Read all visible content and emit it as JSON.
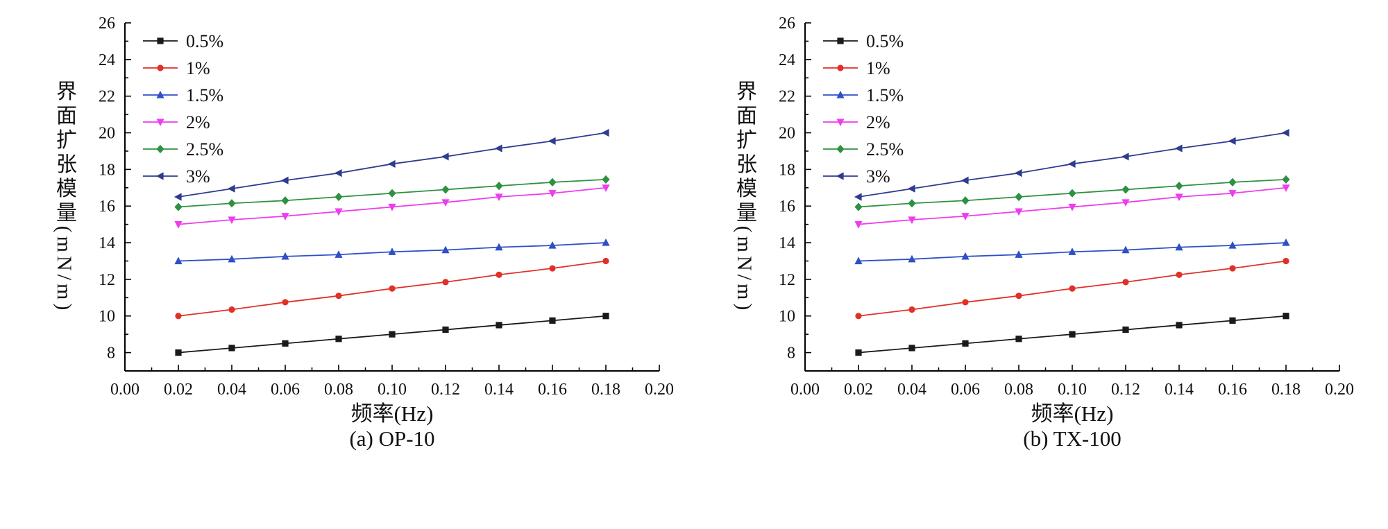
{
  "figure": {
    "background": "#ffffff",
    "axis_color": "#000000",
    "text_color": "#111111"
  },
  "chart_data": [
    {
      "type": "line",
      "caption": "(a) OP-10",
      "xlabel": "频率(Hz)",
      "ylabel": "界面扩张模量(mN/m)",
      "xlim": [
        0.0,
        0.2
      ],
      "ylim": [
        7,
        26
      ],
      "xticks": [
        "0.00",
        "0.02",
        "0.04",
        "0.06",
        "0.08",
        "0.10",
        "0.12",
        "0.14",
        "0.16",
        "0.18",
        "0.20"
      ],
      "yticks": [
        8,
        10,
        12,
        14,
        16,
        18,
        20,
        22,
        24,
        26
      ],
      "grid": false,
      "legend_position": "top-left",
      "x": [
        0.02,
        0.04,
        0.06,
        0.08,
        0.1,
        0.12,
        0.14,
        0.16,
        0.18
      ],
      "series": [
        {
          "name": "0.5%",
          "color": "#1a1a1a",
          "marker": "square",
          "values": [
            8.0,
            8.25,
            8.5,
            8.75,
            9.0,
            9.25,
            9.5,
            9.75,
            10.0
          ]
        },
        {
          "name": "1%",
          "color": "#e03127",
          "marker": "circle",
          "values": [
            10.0,
            10.35,
            10.75,
            11.1,
            11.5,
            11.85,
            12.25,
            12.6,
            13.0
          ]
        },
        {
          "name": "1.5%",
          "color": "#2f4fc7",
          "marker": "triangle-up",
          "values": [
            13.0,
            13.1,
            13.25,
            13.35,
            13.5,
            13.6,
            13.75,
            13.85,
            14.0
          ]
        },
        {
          "name": "2%",
          "color": "#ee3cee",
          "marker": "triangle-down",
          "values": [
            15.0,
            15.25,
            15.45,
            15.7,
            15.95,
            16.2,
            16.5,
            16.7,
            17.0
          ]
        },
        {
          "name": "2.5%",
          "color": "#2e9142",
          "marker": "diamond",
          "values": [
            15.95,
            16.15,
            16.3,
            16.5,
            16.7,
            16.9,
            17.1,
            17.3,
            17.45
          ]
        },
        {
          "name": "3%",
          "color": "#2e3b8f",
          "marker": "triangle-left",
          "values": [
            16.5,
            16.95,
            17.4,
            17.8,
            18.3,
            18.7,
            19.15,
            19.55,
            20.0
          ]
        }
      ]
    },
    {
      "type": "line",
      "caption": "(b) TX-100",
      "xlabel": "频率(Hz)",
      "ylabel": "界面扩张模量(mN/m)",
      "xlim": [
        0.0,
        0.2
      ],
      "ylim": [
        7,
        26
      ],
      "xticks": [
        "0.00",
        "0.02",
        "0.04",
        "0.06",
        "0.08",
        "0.10",
        "0.12",
        "0.14",
        "0.16",
        "0.18",
        "0.20"
      ],
      "yticks": [
        8,
        10,
        12,
        14,
        16,
        18,
        20,
        22,
        24,
        26
      ],
      "grid": false,
      "legend_position": "top-left",
      "x": [
        0.02,
        0.04,
        0.06,
        0.08,
        0.1,
        0.12,
        0.14,
        0.16,
        0.18
      ],
      "series": [
        {
          "name": "0.5%",
          "color": "#1a1a1a",
          "marker": "square",
          "values": [
            8.0,
            8.25,
            8.5,
            8.75,
            9.0,
            9.25,
            9.5,
            9.75,
            10.0
          ]
        },
        {
          "name": "1%",
          "color": "#e03127",
          "marker": "circle",
          "values": [
            10.0,
            10.35,
            10.75,
            11.1,
            11.5,
            11.85,
            12.25,
            12.6,
            13.0
          ]
        },
        {
          "name": "1.5%",
          "color": "#2f4fc7",
          "marker": "triangle-up",
          "values": [
            13.0,
            13.1,
            13.25,
            13.35,
            13.5,
            13.6,
            13.75,
            13.85,
            14.0
          ]
        },
        {
          "name": "2%",
          "color": "#ee3cee",
          "marker": "triangle-down",
          "values": [
            15.0,
            15.25,
            15.45,
            15.7,
            15.95,
            16.2,
            16.5,
            16.7,
            17.0
          ]
        },
        {
          "name": "2.5%",
          "color": "#2e9142",
          "marker": "diamond",
          "values": [
            15.95,
            16.15,
            16.3,
            16.5,
            16.7,
            16.9,
            17.1,
            17.3,
            17.45
          ]
        },
        {
          "name": "3%",
          "color": "#2e3b8f",
          "marker": "triangle-left",
          "values": [
            16.5,
            16.95,
            17.4,
            17.8,
            18.3,
            18.7,
            19.15,
            19.55,
            20.0
          ]
        }
      ]
    }
  ]
}
